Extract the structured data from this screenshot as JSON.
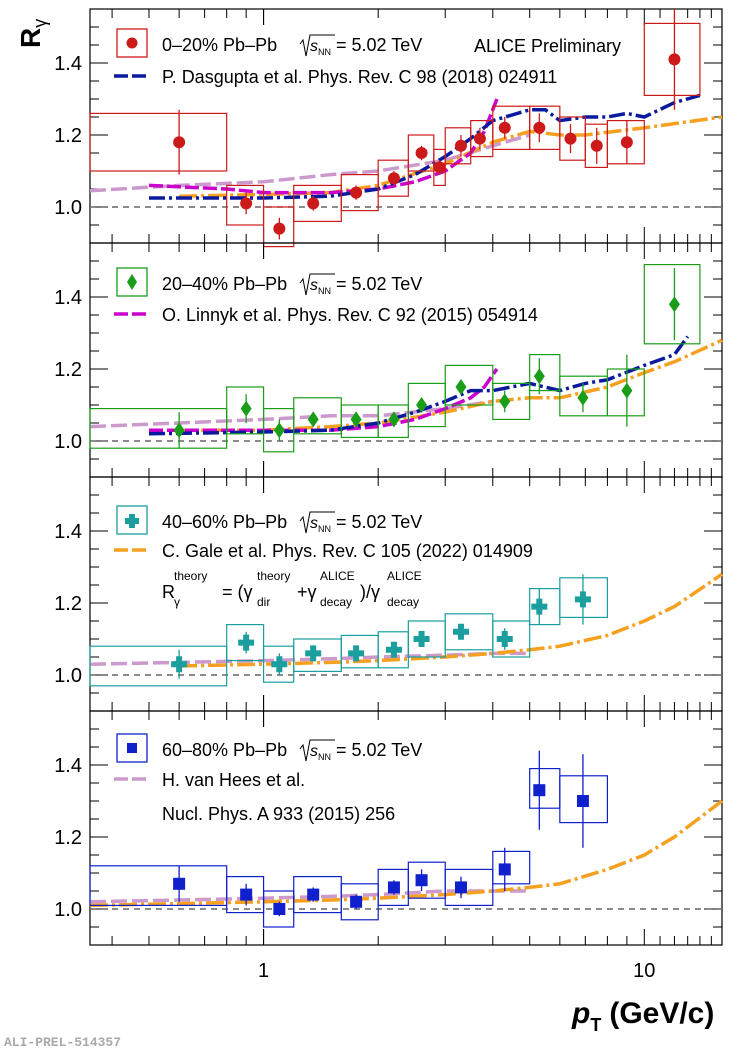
{
  "figure": {
    "y_axis_label_main": "R",
    "y_axis_label_sub": "γ",
    "x_axis_label_var": "p",
    "x_axis_label_sub": "T",
    "x_axis_label_unit": "(GeV/c)",
    "watermark": "ALICE Preliminary",
    "footer_id": "ALI-PREL-514357",
    "x_tick_labels": [
      "1",
      "10"
    ],
    "y_tick_labels": [
      "1.0",
      "1.2",
      "1.4"
    ],
    "formula": {
      "lhs": "R",
      "lhs_sup": "theory",
      "lhs_sub": "γ",
      "rhs": "= (γ_dir^theory + γ_decay^ALICE) / γ_decay^ALICE"
    }
  },
  "colors": {
    "panel1": "#cc1a1a",
    "panel2": "#1a9e1a",
    "panel3": "#1a9e9e",
    "panel4": "#1020cc",
    "dasgupta": "#0a1a9e",
    "linnyk": "#cc00cc",
    "gale": "#f5a020",
    "vanhees": "#cc99cc",
    "unity": "#666666"
  },
  "chart_data": [
    {
      "type": "scatter",
      "panel": 1,
      "legend_data": "0–20% Pb–Pb",
      "legend_energy": "= 5.02 TeV",
      "legend_model": "P. Dasgupta et al. Phys. Rev. C 98 (2018) 024911",
      "marker": "circle",
      "x": [
        0.6,
        0.9,
        1.1,
        1.35,
        1.75,
        2.2,
        2.6,
        2.9,
        3.3,
        3.7,
        4.3,
        5.3,
        6.4,
        7.5,
        9.0,
        12.0
      ],
      "y": [
        1.18,
        1.01,
        0.94,
        1.01,
        1.04,
        1.08,
        1.15,
        1.11,
        1.17,
        1.19,
        1.22,
        1.22,
        1.19,
        1.17,
        1.18,
        1.41
      ],
      "stat_err": [
        0.09,
        0.03,
        0.03,
        0.02,
        0.02,
        0.02,
        0.02,
        0.02,
        0.03,
        0.03,
        0.03,
        0.04,
        0.04,
        0.05,
        0.06,
        0.14
      ],
      "sys_box": [
        {
          "x1": 0.35,
          "x2": 0.8,
          "lo": 1.1,
          "hi": 1.26
        },
        {
          "x1": 0.8,
          "x2": 1.0,
          "lo": 0.95,
          "hi": 1.06
        },
        {
          "x1": 1.0,
          "x2": 1.2,
          "lo": 0.89,
          "hi": 1.0
        },
        {
          "x1": 1.2,
          "x2": 1.6,
          "lo": 0.96,
          "hi": 1.06
        },
        {
          "x1": 1.6,
          "x2": 2.0,
          "lo": 0.99,
          "hi": 1.09
        },
        {
          "x1": 2.0,
          "x2": 2.4,
          "lo": 1.03,
          "hi": 1.13
        },
        {
          "x1": 2.4,
          "x2": 2.8,
          "lo": 1.1,
          "hi": 1.2
        },
        {
          "x1": 2.8,
          "x2": 3.0,
          "lo": 1.06,
          "hi": 1.16
        },
        {
          "x1": 3.0,
          "x2": 3.5,
          "lo": 1.12,
          "hi": 1.22
        },
        {
          "x1": 3.5,
          "x2": 4.0,
          "lo": 1.14,
          "hi": 1.24
        },
        {
          "x1": 4.0,
          "x2": 5.0,
          "lo": 1.16,
          "hi": 1.28
        },
        {
          "x1": 5.0,
          "x2": 6.0,
          "lo": 1.16,
          "hi": 1.28
        },
        {
          "x1": 6.0,
          "x2": 7.0,
          "lo": 1.13,
          "hi": 1.25
        },
        {
          "x1": 7.0,
          "x2": 8.0,
          "lo": 1.11,
          "hi": 1.23
        },
        {
          "x1": 8.0,
          "x2": 10.0,
          "lo": 1.12,
          "hi": 1.24
        },
        {
          "x1": 10.0,
          "x2": 14.0,
          "lo": 1.31,
          "hi": 1.51
        }
      ],
      "models": [
        {
          "id": "vanhees",
          "x": [
            0.35,
            0.6,
            1.0,
            1.5,
            2.0,
            3.0,
            4.0,
            5.0
          ],
          "y": [
            1.045,
            1.06,
            1.07,
            1.09,
            1.1,
            1.13,
            1.17,
            1.2
          ]
        },
        {
          "id": "gale",
          "x": [
            0.6,
            1.0,
            1.5,
            2.0,
            3.0,
            4.0,
            5.0,
            6.0,
            7.0,
            10.0,
            16.0
          ],
          "y": [
            1.03,
            1.035,
            1.04,
            1.06,
            1.12,
            1.18,
            1.21,
            1.2,
            1.2,
            1.22,
            1.25
          ]
        },
        {
          "id": "linnyk",
          "x": [
            0.5,
            0.8,
            1.0,
            1.5,
            2.0,
            2.5,
            3.0,
            3.5,
            3.8,
            4.1
          ],
          "y": [
            1.06,
            1.05,
            1.04,
            1.04,
            1.05,
            1.07,
            1.1,
            1.15,
            1.21,
            1.3
          ]
        },
        {
          "id": "dasgupta",
          "x": [
            0.5,
            0.8,
            1.0,
            1.5,
            2.0,
            2.5,
            3.0,
            3.5,
            4.0,
            5.0,
            5.5,
            6.0,
            7.0,
            8.0,
            9.0,
            10.0,
            12.0,
            14.0
          ],
          "y": [
            1.025,
            1.025,
            1.025,
            1.03,
            1.05,
            1.09,
            1.14,
            1.19,
            1.24,
            1.27,
            1.27,
            1.24,
            1.25,
            1.25,
            1.26,
            1.25,
            1.29,
            1.31
          ]
        }
      ]
    },
    {
      "type": "scatter",
      "panel": 2,
      "legend_data": "20–40% Pb–Pb",
      "legend_energy": "= 5.02 TeV",
      "legend_model": "O. Linnyk et al. Phys. Rev. C 92 (2015) 054914",
      "marker": "diamond",
      "x": [
        0.6,
        0.9,
        1.1,
        1.35,
        1.75,
        2.2,
        2.6,
        3.3,
        4.3,
        5.3,
        6.9,
        9.0,
        12.0
      ],
      "y": [
        1.03,
        1.09,
        1.03,
        1.06,
        1.06,
        1.06,
        1.1,
        1.15,
        1.11,
        1.18,
        1.12,
        1.14,
        1.38
      ],
      "stat_err": [
        0.05,
        0.04,
        0.03,
        0.02,
        0.02,
        0.02,
        0.02,
        0.02,
        0.03,
        0.05,
        0.04,
        0.1,
        0.1
      ],
      "sys_box": [
        {
          "x1": 0.35,
          "x2": 0.8,
          "lo": 0.98,
          "hi": 1.09
        },
        {
          "x1": 0.8,
          "x2": 1.0,
          "lo": 1.02,
          "hi": 1.15
        },
        {
          "x1": 1.0,
          "x2": 1.2,
          "lo": 0.97,
          "hi": 1.09
        },
        {
          "x1": 1.2,
          "x2": 1.6,
          "lo": 1.02,
          "hi": 1.12
        },
        {
          "x1": 1.6,
          "x2": 2.0,
          "lo": 1.01,
          "hi": 1.1
        },
        {
          "x1": 2.0,
          "x2": 2.4,
          "lo": 1.01,
          "hi": 1.1
        },
        {
          "x1": 2.4,
          "x2": 3.0,
          "lo": 1.04,
          "hi": 1.16
        },
        {
          "x1": 3.0,
          "x2": 4.0,
          "lo": 1.1,
          "hi": 1.21
        },
        {
          "x1": 4.0,
          "x2": 5.0,
          "lo": 1.06,
          "hi": 1.16
        },
        {
          "x1": 5.0,
          "x2": 6.0,
          "lo": 1.14,
          "hi": 1.24
        },
        {
          "x1": 6.0,
          "x2": 8.0,
          "lo": 1.07,
          "hi": 1.18
        },
        {
          "x1": 8.0,
          "x2": 10.0,
          "lo": 1.07,
          "hi": 1.2
        },
        {
          "x1": 10.0,
          "x2": 14.0,
          "lo": 1.27,
          "hi": 1.49
        }
      ],
      "models": [
        {
          "id": "vanhees",
          "x": [
            0.35,
            0.6,
            1.0,
            1.5,
            2.0,
            3.0,
            4.0
          ],
          "y": [
            1.04,
            1.05,
            1.06,
            1.07,
            1.07,
            1.09,
            1.11
          ]
        },
        {
          "id": "gale",
          "x": [
            0.6,
            1.0,
            1.5,
            2.0,
            3.0,
            4.0,
            5.0,
            6.0,
            8.0,
            10.0,
            12.0,
            16.0
          ],
          "y": [
            1.03,
            1.03,
            1.04,
            1.05,
            1.08,
            1.11,
            1.12,
            1.12,
            1.15,
            1.19,
            1.22,
            1.28
          ]
        },
        {
          "id": "linnyk",
          "x": [
            0.5,
            1.0,
            1.5,
            2.0,
            2.5,
            3.0,
            3.5,
            3.8,
            4.1
          ],
          "y": [
            1.03,
            1.03,
            1.03,
            1.04,
            1.06,
            1.09,
            1.12,
            1.15,
            1.2
          ]
        },
        {
          "id": "dasgupta",
          "x": [
            0.5,
            1.0,
            1.5,
            2.0,
            2.5,
            3.0,
            3.5,
            4.0,
            5.0,
            6.0,
            7.0,
            8.0,
            10.0,
            12.0,
            13.0
          ],
          "y": [
            1.02,
            1.025,
            1.03,
            1.05,
            1.08,
            1.11,
            1.14,
            1.14,
            1.16,
            1.14,
            1.16,
            1.17,
            1.21,
            1.24,
            1.29
          ]
        }
      ]
    },
    {
      "type": "scatter",
      "panel": 3,
      "legend_data": "40–60% Pb–Pb",
      "legend_energy": "= 5.02 TeV",
      "legend_model": "C. Gale et al. Phys. Rev. C 105 (2022) 014909",
      "marker": "cross",
      "x": [
        0.6,
        0.9,
        1.1,
        1.35,
        1.75,
        2.2,
        2.6,
        3.3,
        4.3,
        5.3,
        6.9
      ],
      "y": [
        1.03,
        1.09,
        1.03,
        1.06,
        1.06,
        1.07,
        1.1,
        1.12,
        1.1,
        1.19,
        1.21
      ],
      "stat_err": [
        0.04,
        0.03,
        0.03,
        0.02,
        0.02,
        0.02,
        0.02,
        0.02,
        0.03,
        0.05,
        0.07
      ],
      "sys_box": [
        {
          "x1": 0.35,
          "x2": 0.8,
          "lo": 0.97,
          "hi": 1.08
        },
        {
          "x1": 0.8,
          "x2": 1.0,
          "lo": 1.04,
          "hi": 1.14
        },
        {
          "x1": 1.0,
          "x2": 1.2,
          "lo": 0.98,
          "hi": 1.08
        },
        {
          "x1": 1.2,
          "x2": 1.6,
          "lo": 1.01,
          "hi": 1.1
        },
        {
          "x1": 1.6,
          "x2": 2.0,
          "lo": 1.02,
          "hi": 1.11
        },
        {
          "x1": 2.0,
          "x2": 2.4,
          "lo": 1.02,
          "hi": 1.12
        },
        {
          "x1": 2.4,
          "x2": 3.0,
          "lo": 1.05,
          "hi": 1.15
        },
        {
          "x1": 3.0,
          "x2": 4.0,
          "lo": 1.07,
          "hi": 1.17
        },
        {
          "x1": 4.0,
          "x2": 5.0,
          "lo": 1.05,
          "hi": 1.15
        },
        {
          "x1": 5.0,
          "x2": 6.0,
          "lo": 1.14,
          "hi": 1.24
        },
        {
          "x1": 6.0,
          "x2": 8.0,
          "lo": 1.16,
          "hi": 1.27
        }
      ],
      "models": [
        {
          "id": "vanhees",
          "x": [
            0.35,
            0.6,
            1.0,
            1.5,
            2.0,
            3.0,
            4.0,
            5.0
          ],
          "y": [
            1.03,
            1.035,
            1.04,
            1.045,
            1.05,
            1.055,
            1.06,
            1.06
          ]
        },
        {
          "id": "gale",
          "x": [
            0.6,
            1.0,
            1.5,
            2.0,
            3.0,
            4.0,
            5.0,
            6.0,
            8.0,
            10.0,
            12.0,
            16.0
          ],
          "y": [
            1.025,
            1.03,
            1.035,
            1.04,
            1.05,
            1.06,
            1.07,
            1.08,
            1.11,
            1.15,
            1.19,
            1.28
          ]
        }
      ]
    },
    {
      "type": "scatter",
      "panel": 4,
      "legend_data": "60–80% Pb–Pb",
      "legend_energy": "= 5.02 TeV",
      "legend_model": "H. van Hees et al.",
      "legend_model_line2": "Nucl. Phys. A 933 (2015) 256",
      "marker": "square",
      "x": [
        0.6,
        0.9,
        1.1,
        1.35,
        1.75,
        2.2,
        2.6,
        3.3,
        4.3,
        5.3,
        6.9
      ],
      "y": [
        1.07,
        1.04,
        1.0,
        1.04,
        1.02,
        1.06,
        1.08,
        1.06,
        1.11,
        1.33,
        1.3
      ],
      "stat_err": [
        0.05,
        0.03,
        0.02,
        0.02,
        0.02,
        0.02,
        0.03,
        0.03,
        0.06,
        0.11,
        0.13
      ],
      "sys_box": [
        {
          "x1": 0.35,
          "x2": 0.8,
          "lo": 1.01,
          "hi": 1.12
        },
        {
          "x1": 0.8,
          "x2": 1.0,
          "lo": 0.99,
          "hi": 1.09
        },
        {
          "x1": 1.0,
          "x2": 1.2,
          "lo": 0.95,
          "hi": 1.05
        },
        {
          "x1": 1.2,
          "x2": 1.6,
          "lo": 0.99,
          "hi": 1.09
        },
        {
          "x1": 1.6,
          "x2": 2.0,
          "lo": 0.97,
          "hi": 1.07
        },
        {
          "x1": 2.0,
          "x2": 2.4,
          "lo": 1.01,
          "hi": 1.11
        },
        {
          "x1": 2.4,
          "x2": 3.0,
          "lo": 1.03,
          "hi": 1.13
        },
        {
          "x1": 3.0,
          "x2": 4.0,
          "lo": 1.01,
          "hi": 1.11
        },
        {
          "x1": 4.0,
          "x2": 5.0,
          "lo": 1.07,
          "hi": 1.16
        },
        {
          "x1": 5.0,
          "x2": 6.0,
          "lo": 1.28,
          "hi": 1.39
        },
        {
          "x1": 6.0,
          "x2": 8.0,
          "lo": 1.24,
          "hi": 1.37
        }
      ],
      "models": [
        {
          "id": "vanhees",
          "x": [
            0.35,
            0.6,
            1.0,
            1.5,
            2.0,
            3.0,
            4.0,
            5.0
          ],
          "y": [
            1.02,
            1.025,
            1.03,
            1.035,
            1.04,
            1.05,
            1.05,
            1.05
          ]
        },
        {
          "id": "gale",
          "x": [
            0.35,
            0.6,
            1.0,
            1.5,
            2.0,
            3.0,
            4.0,
            5.0,
            6.0,
            8.0,
            10.0,
            12.0,
            16.0
          ],
          "y": [
            1.01,
            1.015,
            1.02,
            1.025,
            1.03,
            1.04,
            1.05,
            1.06,
            1.07,
            1.11,
            1.15,
            1.2,
            1.3
          ]
        }
      ]
    }
  ],
  "axes": {
    "x_log": true,
    "xlim": [
      0.35,
      16.0
    ],
    "ylim": [
      0.9,
      1.55
    ]
  }
}
